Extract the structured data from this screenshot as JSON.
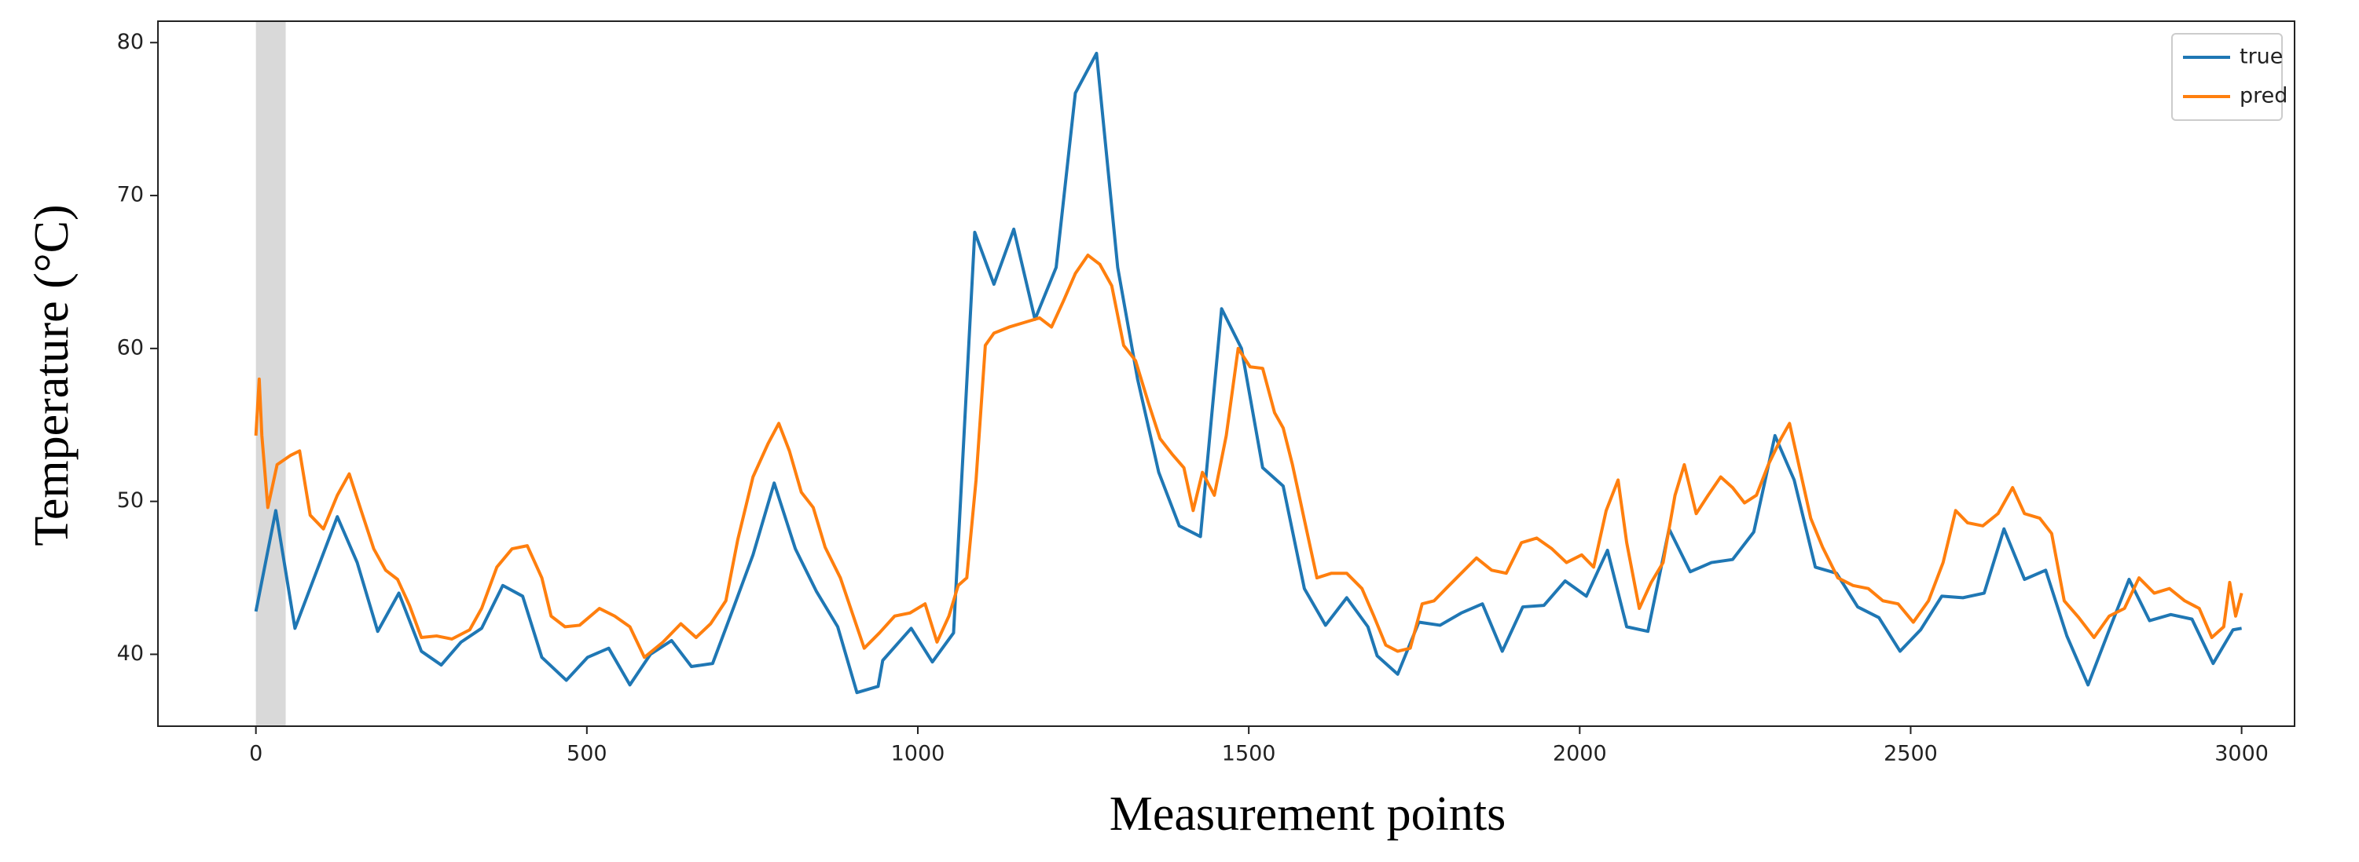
{
  "chart_data": {
    "type": "line",
    "xlabel": "Measurement points",
    "ylabel": "Temperature (°C)",
    "xlim": [
      -148,
      3080
    ],
    "ylim": [
      35.3,
      81.4
    ],
    "xticks": [
      0,
      500,
      1000,
      1500,
      2000,
      2500,
      3000
    ],
    "yticks": [
      40,
      50,
      60,
      70,
      80
    ],
    "grid": false,
    "legend": "upper right",
    "shaded_span": [
      0,
      45
    ],
    "shaded_color": "#d9d9d9",
    "series": [
      {
        "name": "true",
        "color": "#1f77b4",
        "x": [
          0,
          30,
          59,
          123,
          153,
          184,
          216,
          250,
          280,
          310,
          341,
          373,
          403,
          432,
          469,
          501,
          533,
          565,
          596,
          628,
          658,
          690,
          722,
          751,
          783,
          815,
          847,
          879,
          908,
          940,
          947,
          990,
          1022,
          1054,
          1086,
          1115,
          1145,
          1177,
          1209,
          1238,
          1270,
          1302,
          1332,
          1364,
          1395,
          1427,
          1459,
          1489,
          1521,
          1552,
          1584,
          1616,
          1648,
          1680,
          1694,
          1725,
          1757,
          1789,
          1821,
          1853,
          1883,
          1914,
          1946,
          1978,
          2010,
          2042,
          2071,
          2103,
          2135,
          2167,
          2199,
          2231,
          2263,
          2295,
          2324,
          2356,
          2388,
          2420,
          2452,
          2484,
          2515,
          2547,
          2579,
          2611,
          2641,
          2672,
          2704,
          2736,
          2768,
          2800,
          2830,
          2861,
          2893,
          2925,
          2957,
          2987,
          3000
        ],
        "values": [
          42.8,
          49.4,
          41.7,
          49.0,
          46.0,
          41.5,
          44.0,
          40.2,
          39.3,
          40.8,
          41.7,
          44.5,
          43.8,
          39.8,
          38.3,
          39.8,
          40.4,
          38.0,
          40.0,
          40.9,
          39.2,
          39.4,
          43.1,
          46.5,
          51.2,
          46.9,
          44.1,
          41.8,
          37.5,
          37.9,
          39.6,
          41.7,
          39.5,
          41.4,
          67.6,
          64.2,
          67.8,
          61.9,
          65.3,
          76.7,
          79.3,
          65.3,
          58.0,
          51.9,
          48.4,
          47.7,
          62.6,
          60.0,
          52.2,
          51.0,
          44.3,
          41.9,
          43.7,
          41.8,
          39.9,
          38.7,
          42.1,
          41.9,
          42.7,
          43.3,
          40.2,
          43.1,
          43.2,
          44.8,
          43.8,
          46.8,
          41.8,
          41.5,
          48.2,
          45.4,
          46.0,
          46.2,
          48.0,
          54.3,
          51.4,
          45.7,
          45.3,
          43.1,
          42.4,
          40.2,
          41.6,
          43.8,
          43.7,
          44.0,
          48.2,
          44.9,
          45.5,
          41.2,
          38.0,
          41.6,
          44.9,
          42.2,
          42.6,
          42.3,
          39.4,
          41.6,
          41.7
        ]
      },
      {
        "name": "pred",
        "color": "#ff7f0e",
        "x": [
          0,
          5,
          9,
          18,
          32,
          52,
          66,
          82,
          102,
          123,
          141,
          159,
          178,
          196,
          214,
          232,
          250,
          273,
          296,
          323,
          341,
          364,
          387,
          410,
          432,
          446,
          467,
          489,
          519,
          542,
          565,
          587,
          615,
          642,
          665,
          687,
          710,
          728,
          751,
          774,
          790,
          806,
          824,
          842,
          860,
          883,
          901,
          919,
          942,
          965,
          988,
          1011,
          1029,
          1047,
          1061,
          1074,
          1088,
          1102,
          1115,
          1138,
          1161,
          1184,
          1202,
          1220,
          1238,
          1257,
          1275,
          1293,
          1311,
          1329,
          1348,
          1366,
          1384,
          1402,
          1416,
          1430,
          1448,
          1466,
          1484,
          1502,
          1521,
          1539,
          1552,
          1566,
          1584,
          1603,
          1625,
          1648,
          1671,
          1689,
          1707,
          1725,
          1744,
          1762,
          1780,
          1798,
          1821,
          1844,
          1867,
          1889,
          1912,
          1935,
          1958,
          1980,
          2003,
          2021,
          2040,
          2058,
          2071,
          2090,
          2108,
          2126,
          2144,
          2158,
          2176,
          2194,
          2213,
          2231,
          2249,
          2267,
          2285,
          2304,
          2317,
          2331,
          2349,
          2367,
          2390,
          2413,
          2436,
          2458,
          2481,
          2504,
          2527,
          2549,
          2568,
          2586,
          2609,
          2632,
          2654,
          2672,
          2695,
          2713,
          2732,
          2754,
          2777,
          2800,
          2823,
          2845,
          2868,
          2891,
          2914,
          2936,
          2955,
          2973,
          2982,
          2991,
          3000
        ],
        "values": [
          54.3,
          58.0,
          54.3,
          49.6,
          52.4,
          53.0,
          53.3,
          49.1,
          48.2,
          50.4,
          51.8,
          49.4,
          46.9,
          45.5,
          44.9,
          43.2,
          41.1,
          41.2,
          41.0,
          41.6,
          43.0,
          45.7,
          46.9,
          47.1,
          45.0,
          42.5,
          41.8,
          41.9,
          43.0,
          42.5,
          41.8,
          39.8,
          40.8,
          42.0,
          41.1,
          42.0,
          43.5,
          47.5,
          51.6,
          53.8,
          55.1,
          53.3,
          50.6,
          49.6,
          47.0,
          45.0,
          42.7,
          40.4,
          41.4,
          42.5,
          42.7,
          43.3,
          40.8,
          42.5,
          44.5,
          45.0,
          51.4,
          60.2,
          61.0,
          61.4,
          61.7,
          62.0,
          61.4,
          63.1,
          64.9,
          66.1,
          65.5,
          64.1,
          60.2,
          59.2,
          56.5,
          54.1,
          53.1,
          52.2,
          49.4,
          51.9,
          50.4,
          54.3,
          60.0,
          58.8,
          58.7,
          55.8,
          54.8,
          52.4,
          48.8,
          45.0,
          45.3,
          45.3,
          44.3,
          42.5,
          40.6,
          40.2,
          40.4,
          43.3,
          43.5,
          44.3,
          45.3,
          46.3,
          45.5,
          45.3,
          47.3,
          47.6,
          46.9,
          46.0,
          46.5,
          45.7,
          49.4,
          51.4,
          47.3,
          43.0,
          44.7,
          46.0,
          50.4,
          52.4,
          49.2,
          50.4,
          51.6,
          50.9,
          49.9,
          50.4,
          52.4,
          54.1,
          55.1,
          52.4,
          48.9,
          47.0,
          45.0,
          44.5,
          44.3,
          43.5,
          43.3,
          42.1,
          43.5,
          46.0,
          49.4,
          48.6,
          48.4,
          49.2,
          50.9,
          49.2,
          48.9,
          47.9,
          43.5,
          42.4,
          41.1,
          42.5,
          43.0,
          45.0,
          44.0,
          44.3,
          43.5,
          43.0,
          41.1,
          41.8,
          44.7,
          42.5,
          44.0
        ]
      }
    ]
  }
}
